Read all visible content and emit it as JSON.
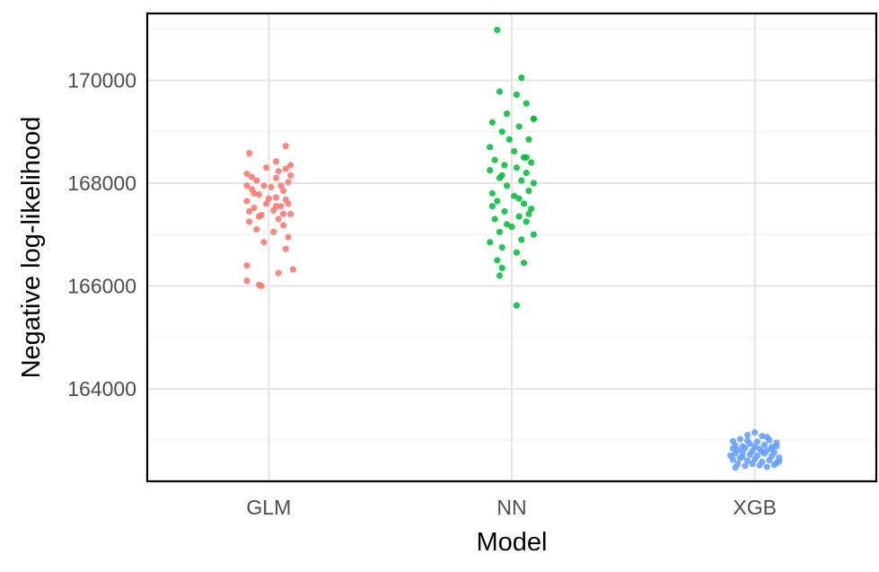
{
  "chart_data": {
    "type": "scatter",
    "title": "",
    "xlabel": "Model",
    "ylabel": "Negative log-likelihood",
    "categories": [
      "GLM",
      "NN",
      "XGB"
    ],
    "ylim": [
      162200,
      171300
    ],
    "y_ticks": [
      164000,
      166000,
      168000,
      170000
    ],
    "y_tick_labels": [
      "164000",
      "166000",
      "168000",
      "170000"
    ],
    "grid": true,
    "legend": "none",
    "series": [
      {
        "category": "GLM",
        "color": "#F8766D",
        "points": [
          [
            -0.08,
            168580
          ],
          [
            0.07,
            168720
          ],
          [
            0.03,
            168420
          ],
          [
            -0.09,
            168180
          ],
          [
            0.09,
            168350
          ],
          [
            -0.05,
            168050
          ],
          [
            0.04,
            168230
          ],
          [
            0.08,
            168020
          ],
          [
            -0.02,
            167950
          ],
          [
            0.06,
            167850
          ],
          [
            -0.07,
            167880
          ],
          [
            0.01,
            167920
          ],
          [
            -0.04,
            167780
          ],
          [
            0.03,
            167720
          ],
          [
            -0.09,
            167650
          ],
          [
            0.07,
            167680
          ],
          [
            -0.01,
            167600
          ],
          [
            0.05,
            167550
          ],
          [
            -0.06,
            167520
          ],
          [
            0.02,
            167470
          ],
          [
            0.09,
            167400
          ],
          [
            -0.03,
            167380
          ],
          [
            0.04,
            167300
          ],
          [
            -0.08,
            167250
          ],
          [
            0.06,
            167180
          ],
          [
            -0.05,
            167100
          ],
          [
            0.02,
            167050
          ],
          [
            0.08,
            166950
          ],
          [
            -0.02,
            166850
          ],
          [
            0.07,
            166720
          ],
          [
            -0.09,
            166400
          ],
          [
            0.1,
            166320
          ],
          [
            0.04,
            166250
          ],
          [
            -0.09,
            166100
          ],
          [
            -0.04,
            166020
          ],
          [
            -0.03,
            166000
          ],
          [
            0.07,
            168280
          ],
          [
            -0.07,
            168120
          ],
          [
            0.03,
            168100
          ],
          [
            -0.01,
            168300
          ],
          [
            0.09,
            168150
          ],
          [
            -0.09,
            167950
          ],
          [
            0.05,
            167950
          ],
          [
            -0.06,
            167800
          ],
          [
            0.0,
            167700
          ],
          [
            0.08,
            167600
          ],
          [
            -0.08,
            167450
          ],
          [
            0.03,
            167550
          ],
          [
            -0.04,
            167350
          ],
          [
            0.06,
            167400
          ]
        ]
      },
      {
        "category": "NN",
        "color": "#00BA38",
        "points": [
          [
            -0.06,
            170980
          ],
          [
            0.04,
            170050
          ],
          [
            -0.05,
            169780
          ],
          [
            0.02,
            169720
          ],
          [
            0.06,
            169550
          ],
          [
            -0.02,
            169350
          ],
          [
            0.09,
            169250
          ],
          [
            -0.08,
            169180
          ],
          [
            0.03,
            169100
          ],
          [
            -0.04,
            169000
          ],
          [
            0.07,
            168850
          ],
          [
            -0.09,
            168700
          ],
          [
            0.01,
            168620
          ],
          [
            0.05,
            168500
          ],
          [
            -0.07,
            168450
          ],
          [
            0.08,
            168400
          ],
          [
            -0.03,
            168350
          ],
          [
            0.02,
            168300
          ],
          [
            -0.09,
            168250
          ],
          [
            0.06,
            168200
          ],
          [
            -0.05,
            168100
          ],
          [
            0.04,
            168050
          ],
          [
            0.09,
            168000
          ],
          [
            -0.02,
            167950
          ],
          [
            0.07,
            167850
          ],
          [
            -0.08,
            167800
          ],
          [
            0.01,
            167750
          ],
          [
            -0.06,
            167650
          ],
          [
            0.05,
            167600
          ],
          [
            0.08,
            167500
          ],
          [
            -0.03,
            167450
          ],
          [
            0.03,
            167350
          ],
          [
            -0.07,
            167300
          ],
          [
            0.06,
            167250
          ],
          [
            0.0,
            167150
          ],
          [
            -0.05,
            167050
          ],
          [
            0.09,
            167000
          ],
          [
            0.04,
            166900
          ],
          [
            -0.09,
            166850
          ],
          [
            -0.04,
            166750
          ],
          [
            0.02,
            166650
          ],
          [
            -0.06,
            166500
          ],
          [
            0.05,
            166450
          ],
          [
            -0.04,
            166350
          ],
          [
            -0.05,
            166200
          ],
          [
            0.02,
            165620
          ],
          [
            0.09,
            169250
          ],
          [
            -0.01,
            168850
          ],
          [
            0.06,
            168500
          ],
          [
            -0.04,
            168150
          ],
          [
            0.03,
            167700
          ],
          [
            -0.08,
            167550
          ],
          [
            0.07,
            167400
          ],
          [
            -0.02,
            167200
          ]
        ]
      },
      {
        "category": "XGB",
        "color": "#619CFF",
        "points": [
          [
            -0.09,
            162980
          ],
          [
            -0.06,
            163020
          ],
          [
            -0.03,
            163100
          ],
          [
            0.0,
            163150
          ],
          [
            0.03,
            163080
          ],
          [
            0.06,
            163000
          ],
          [
            0.09,
            162950
          ],
          [
            -0.08,
            162900
          ],
          [
            -0.05,
            162880
          ],
          [
            -0.02,
            162930
          ],
          [
            0.01,
            162970
          ],
          [
            0.04,
            162910
          ],
          [
            0.07,
            162870
          ],
          [
            -0.09,
            162840
          ],
          [
            -0.07,
            162810
          ],
          [
            -0.04,
            162850
          ],
          [
            -0.01,
            162790
          ],
          [
            0.02,
            162830
          ],
          [
            0.05,
            162800
          ],
          [
            0.08,
            162760
          ],
          [
            -0.08,
            162740
          ],
          [
            -0.05,
            162760
          ],
          [
            -0.02,
            162720
          ],
          [
            0.01,
            162700
          ],
          [
            0.04,
            162740
          ],
          [
            0.07,
            162690
          ],
          [
            0.1,
            162660
          ],
          [
            -0.09,
            162620
          ],
          [
            -0.06,
            162650
          ],
          [
            -0.03,
            162600
          ],
          [
            0.0,
            162630
          ],
          [
            0.03,
            162580
          ],
          [
            0.06,
            162610
          ],
          [
            0.09,
            162560
          ],
          [
            -0.07,
            162540
          ],
          [
            -0.04,
            162500
          ],
          [
            -0.01,
            162540
          ],
          [
            0.02,
            162510
          ],
          [
            0.05,
            162480
          ],
          [
            0.08,
            162520
          ],
          [
            -0.08,
            162470
          ],
          [
            0.1,
            162590
          ],
          [
            -0.1,
            162700
          ],
          [
            0.0,
            162870
          ],
          [
            0.05,
            163060
          ],
          [
            -0.05,
            162680
          ],
          [
            0.07,
            162830
          ],
          [
            -0.03,
            162990
          ],
          [
            0.03,
            162780
          ],
          [
            0.09,
            162880
          ]
        ]
      }
    ]
  }
}
